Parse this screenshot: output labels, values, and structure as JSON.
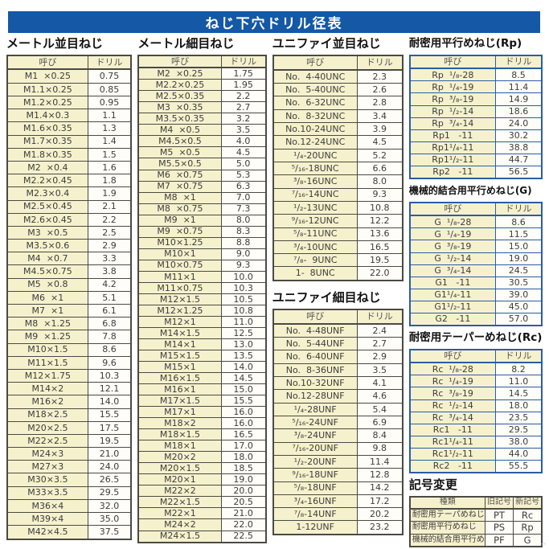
{
  "page_title": "ねじ下穴ドリル径表",
  "footer_mark": "--",
  "colors": {
    "header_bar_blue": "#1458a6",
    "cell_yellow": "#f6f1cd",
    "cell_white": "#fffdf7",
    "border_dark": "#4a4a44",
    "border_blue": "#2b5ca6"
  },
  "sections": {
    "metric_coarse": {
      "title": "メートル並目ねじ",
      "headers": [
        "呼び",
        "ドリル"
      ],
      "rows": [
        [
          "M1  ×0.25",
          "0.75"
        ],
        [
          "M1.1×0.25",
          "0.85"
        ],
        [
          "M1.2×0.25",
          "0.95"
        ],
        [
          "M1.4×0.3",
          "1.1"
        ],
        [
          "M1.6×0.35",
          "1.3"
        ],
        [
          "M1.7×0.35",
          "1.4"
        ],
        [
          "M1.8×0.35",
          "1.5"
        ],
        [
          "M2  ×0.4",
          "1.6"
        ],
        [
          "M2.2×0.45",
          "1.8"
        ],
        [
          "M2.3×0.4",
          "1.9"
        ],
        [
          "M2.5×0.45",
          "2.1"
        ],
        [
          "M2.6×0.45",
          "2.2"
        ],
        [
          "M3  ×0.5",
          "2.5"
        ],
        [
          "M3.5×0.6",
          "2.9"
        ],
        [
          "M4  ×0.7",
          "3.3"
        ],
        [
          "M4.5×0.75",
          "3.8"
        ],
        [
          "M5  ×0.8",
          "4.2"
        ],
        [
          "M6  ×1",
          "5.1"
        ],
        [
          "M7  ×1",
          "6.1"
        ],
        [
          "M8  ×1.25",
          "6.8"
        ],
        [
          "M9  ×1.25",
          "7.8"
        ],
        [
          "M10×1.5",
          "8.6"
        ],
        [
          "M11×1.5",
          "9.6"
        ],
        [
          "M12×1.75",
          "10.3"
        ],
        [
          "M14×2",
          "12.1"
        ],
        [
          "M16×2",
          "14.0"
        ],
        [
          "M18×2.5",
          "15.5"
        ],
        [
          "M20×2.5",
          "17.5"
        ],
        [
          "M22×2.5",
          "19.5"
        ],
        [
          "M24×3",
          "21.0"
        ],
        [
          "M27×3",
          "24.0"
        ],
        [
          "M30×3.5",
          "26.5"
        ],
        [
          "M33×3.5",
          "29.5"
        ],
        [
          "M36×4",
          "32.0"
        ],
        [
          "M39×4",
          "35.0"
        ],
        [
          "M42×4.5",
          "37.5"
        ]
      ]
    },
    "metric_fine": {
      "title": "メートル細目ねじ",
      "headers": [
        "呼び",
        "ドリル"
      ],
      "rows": [
        [
          "M2  ×0.25",
          "1.75"
        ],
        [
          "M2.2×0.25",
          "1.95"
        ],
        [
          "M2.5×0.35",
          "2.2"
        ],
        [
          "M3  ×0.35",
          "2.7"
        ],
        [
          "M3.5×0.35",
          "3.2"
        ],
        [
          "M4  ×0.5",
          "3.5"
        ],
        [
          "M4.5×0.5",
          "4.0"
        ],
        [
          "M5  ×0.5",
          "4.5"
        ],
        [
          "M5.5×0.5",
          "5.0"
        ],
        [
          "M6  ×0.75",
          "5.3"
        ],
        [
          "M7  ×0.75",
          "6.3"
        ],
        [
          "M8  ×1",
          "7.0"
        ],
        [
          "M8  ×0.75",
          "7.3"
        ],
        [
          "M9  ×1",
          "8.0"
        ],
        [
          "M9  ×0.75",
          "8.3"
        ],
        [
          "M10×1.25",
          "8.8"
        ],
        [
          "M10×1",
          "9.0"
        ],
        [
          "M10×0.75",
          "9.3"
        ],
        [
          "M11×1",
          "10.0"
        ],
        [
          "M11×0.75",
          "10.3"
        ],
        [
          "M12×1.5",
          "10.5"
        ],
        [
          "M12×1.25",
          "10.8"
        ],
        [
          "M12×1",
          "11.0"
        ],
        [
          "M14×1.5",
          "12.5"
        ],
        [
          "M14×1",
          "13.0"
        ],
        [
          "M15×1.5",
          "13.5"
        ],
        [
          "M15×1",
          "14.0"
        ],
        [
          "M16×1.5",
          "14.5"
        ],
        [
          "M16×1",
          "15.0"
        ],
        [
          "M17×1.5",
          "15.5"
        ],
        [
          "M17×1",
          "16.0"
        ],
        [
          "M18×2",
          "16.0"
        ],
        [
          "M18×1.5",
          "16.5"
        ],
        [
          "M18×1",
          "17.0"
        ],
        [
          "M20×2",
          "18.0"
        ],
        [
          "M20×1.5",
          "18.5"
        ],
        [
          "M20×1",
          "19.0"
        ],
        [
          "M22×2",
          "20.0"
        ],
        [
          "M22×1.5",
          "20.5"
        ],
        [
          "M22×1",
          "21.0"
        ],
        [
          "M24×2",
          "22.0"
        ],
        [
          "M24×1.5",
          "22.5"
        ]
      ]
    },
    "unified_coarse": {
      "title": "ユニファイ並目ねじ",
      "headers": [
        "呼び",
        "ドリル"
      ],
      "rows": [
        [
          "No.  4-40UNC",
          "2.3"
        ],
        [
          "No.  5-40UNC",
          "2.6"
        ],
        [
          "No.  6-32UNC",
          "2.8"
        ],
        [
          "No.  8-32UNC",
          "3.4"
        ],
        [
          "No.10-24UNC",
          "3.9"
        ],
        [
          "No.12-24UNC",
          "4.5"
        ],
        [
          "¹/₄-20UNC",
          "5.2"
        ],
        [
          "⁵/₁₆-18UNC",
          "6.6"
        ],
        [
          "³/₈-16UNC",
          "8.0"
        ],
        [
          "⁷/₁₆-14UNC",
          "9.3"
        ],
        [
          "¹/₂-13UNC",
          "10.8"
        ],
        [
          "⁹/₁₆-12UNC",
          "12.2"
        ],
        [
          "⁵/₈-11UNC",
          "13.6"
        ],
        [
          "³/₄-10UNC",
          "16.5"
        ],
        [
          "⁷/₈-  9UNC",
          "19.5"
        ],
        [
          "1-  8UNC",
          "22.0"
        ]
      ]
    },
    "unified_fine": {
      "title": "ユニファイ細目ねじ",
      "headers": [
        "呼び",
        "ドリル"
      ],
      "rows": [
        [
          "No.  4-48UNF",
          "2.4"
        ],
        [
          "No.  5-44UNF",
          "2.7"
        ],
        [
          "No.  6-40UNF",
          "2.9"
        ],
        [
          "No.  8-36UNF",
          "3.5"
        ],
        [
          "No.10-32UNF",
          "4.1"
        ],
        [
          "No.12-28UNF",
          "4.6"
        ],
        [
          "¹/₄-28UNF",
          "5.4"
        ],
        [
          "⁵/₁₆-24UNF",
          "6.9"
        ],
        [
          "³/₈-24UNF",
          "8.4"
        ],
        [
          "⁷/₁₆-20UNF",
          "9.8"
        ],
        [
          "¹/₂-20UNF",
          "11.4"
        ],
        [
          "⁹/₁₆-18UNF",
          "12.8"
        ],
        [
          "⁵/₈-18UNF",
          "14.2"
        ],
        [
          "³/₄-16UNF",
          "17.2"
        ],
        [
          "⁷/₈-14UNF",
          "20.2"
        ],
        [
          "1-12UNF",
          "23.2"
        ]
      ]
    },
    "rp": {
      "title": "耐密用平行めねじ(Rp)",
      "headers": [
        "呼び",
        "ドリル"
      ],
      "rows": [
        [
          "Rp  ¹/₈-28",
          "8.5"
        ],
        [
          "Rp  ¹/₄-19",
          "11.4"
        ],
        [
          "Rp  ³/₈-19",
          "14.9"
        ],
        [
          "Rp  ¹/₂-14",
          "18.6"
        ],
        [
          "Rp  ³/₄-14",
          "24.0"
        ],
        [
          "Rp1   -11",
          "30.2"
        ],
        [
          "Rp1¹/₄-11",
          "38.8"
        ],
        [
          "Rp1¹/₂-11",
          "44.7"
        ],
        [
          "Rp2   -11",
          "56.5"
        ]
      ]
    },
    "g": {
      "title": "機械的結合用平行めねじ(G)",
      "headers": [
        "呼び",
        "ドリル"
      ],
      "rows": [
        [
          "G  ¹/₈-28",
          "8.6"
        ],
        [
          "G  ¹/₄-19",
          "11.5"
        ],
        [
          "G  ³/₈-19",
          "15.0"
        ],
        [
          "G  ¹/₂-14",
          "19.0"
        ],
        [
          "G  ³/₄-14",
          "24.5"
        ],
        [
          "G1   -11",
          "30.5"
        ],
        [
          "G1¹/₄-11",
          "39.0"
        ],
        [
          "G1¹/₂-11",
          "45.0"
        ],
        [
          "G2   -11",
          "57.0"
        ]
      ]
    },
    "rc": {
      "title": "耐密用テーパーめねじ(Rc)",
      "headers": [
        "呼び",
        "ドリル"
      ],
      "rows": [
        [
          "Rc  ¹/₈-28",
          "8.2"
        ],
        [
          "Rc  ¹/₄-19",
          "11.0"
        ],
        [
          "Rc  ³/₈-19",
          "14.5"
        ],
        [
          "Rc  ¹/₂-14",
          "18.0"
        ],
        [
          "Rc  ³/₄-14",
          "23.5"
        ],
        [
          "Rc1   -11",
          "29.5"
        ],
        [
          "Rc1¹/₄-11",
          "38.0"
        ],
        [
          "Rc1¹/₂-11",
          "44.0"
        ],
        [
          "Rc2   -11",
          "55.5"
        ]
      ]
    },
    "symbol_change": {
      "title": "記号変更",
      "headers": [
        "種類",
        "旧記号",
        "新記号"
      ],
      "rows": [
        [
          "耐密用テーパめねじ",
          "PT",
          "Rc"
        ],
        [
          "耐密用平行めねじ",
          "PS",
          "Rp"
        ],
        [
          "機械的結合用平行めねじ",
          "PF",
          "G"
        ]
      ]
    }
  }
}
